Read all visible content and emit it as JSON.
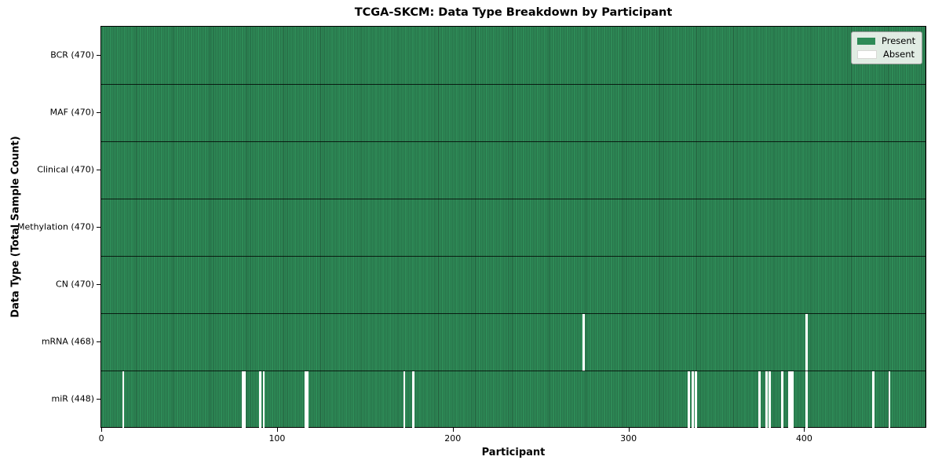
{
  "chart_data": {
    "type": "heatmap",
    "title": "TCGA-SKCM: Data Type Breakdown by Participant",
    "xlabel": "Participant",
    "ylabel": "Data Type (Total Sample Count)",
    "n_participants": 470,
    "x_ticks": [
      "0",
      "100",
      "200",
      "300",
      "400"
    ],
    "x_tick_values": [
      0,
      100,
      200,
      300,
      400
    ],
    "grid": false,
    "legend_position": "upper right",
    "legend": [
      {
        "label": "Present",
        "color": "#2e8b57"
      },
      {
        "label": "Absent",
        "color": "#ffffff"
      }
    ],
    "rows": [
      {
        "label": "BCR (470)",
        "data_type": "BCR",
        "total_samples": 470,
        "missing_participants": []
      },
      {
        "label": "MAF (470)",
        "data_type": "MAF",
        "total_samples": 470,
        "missing_participants": []
      },
      {
        "label": "Clinical (470)",
        "data_type": "Clinical",
        "total_samples": 470,
        "missing_participants": []
      },
      {
        "label": "Methylation (470)",
        "data_type": "Methylation",
        "total_samples": 470,
        "missing_participants": []
      },
      {
        "label": "CN (470)",
        "data_type": "CN",
        "total_samples": 470,
        "missing_participants": []
      },
      {
        "label": "mRNA (468)",
        "data_type": "mRNA",
        "total_samples": 468,
        "missing_participants": [
          274,
          401
        ]
      },
      {
        "label": "miR (448)",
        "data_type": "miR",
        "total_samples": 448,
        "missing_participants": [
          12,
          80,
          81,
          90,
          92,
          116,
          117,
          172,
          177,
          334,
          336,
          338,
          374,
          378,
          380,
          387,
          391,
          392,
          393,
          401,
          439,
          448
        ]
      }
    ],
    "colors": {
      "present": "#2e8b57",
      "present_edge": "#235c3c",
      "absent": "#ffffff",
      "row_divider": "#000000",
      "spine": "#000000"
    }
  }
}
